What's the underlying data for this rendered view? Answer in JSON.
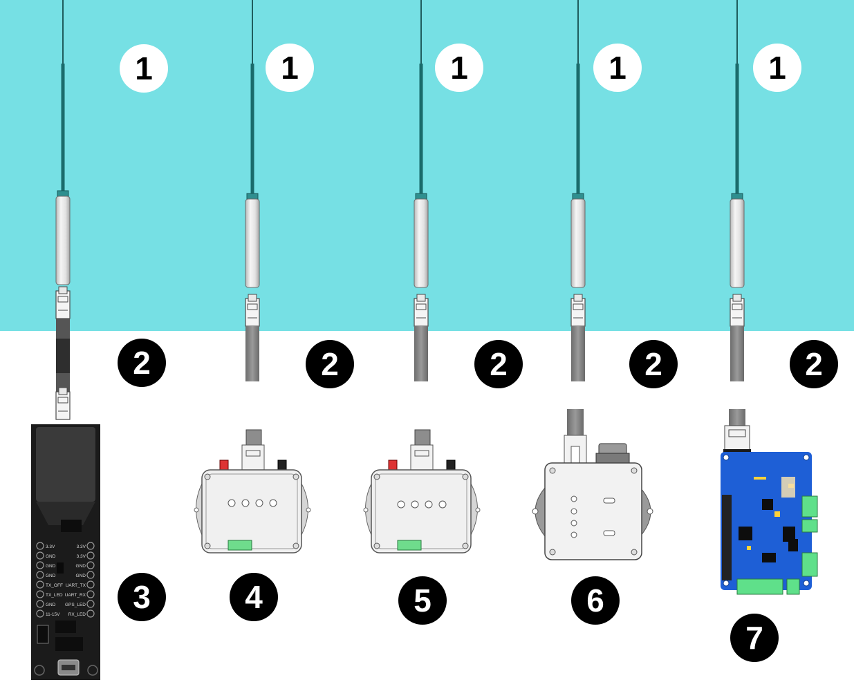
{
  "colors": {
    "water": "#76e0e4",
    "cable_dark": "#1a6b6b",
    "badge_light_bg": "#ffffff",
    "badge_dark_bg": "#000000",
    "board_blue": "#1e5fd6",
    "terminal_green": "#5fe08a"
  },
  "badges": {
    "sensor": [
      "1",
      "1",
      "1",
      "1",
      "1"
    ],
    "adapter": [
      "2",
      "2",
      "2",
      "2",
      "2"
    ],
    "device_3": "3",
    "device_4": "4",
    "device_5": "5",
    "device_6": "6",
    "device_7": "7"
  },
  "pcb_3_labels": {
    "left": [
      "3.3V",
      "GND",
      "GND",
      "GND",
      "TX_OFF",
      "TX_LED",
      "GND",
      "11-15V"
    ],
    "right": [
      "3.3V",
      "3.3V",
      "GND",
      "GND",
      "UART_TX",
      "UART_RX",
      "GPS_LED",
      "RX_LED"
    ]
  },
  "icons": [
    "water-level-sensor-icon",
    "rj45-connector-icon",
    "enclosure-box-icon",
    "circuit-board-icon"
  ]
}
